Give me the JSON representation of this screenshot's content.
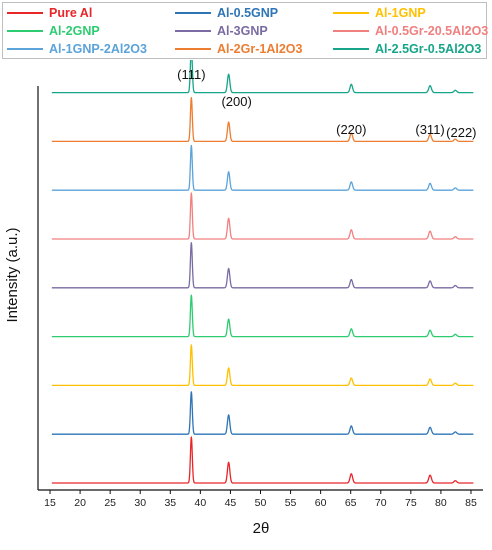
{
  "chart_data": {
    "type": "line",
    "xlabel": "2θ",
    "ylabel": "Intensity (a.u.)",
    "xlim": [
      13,
      87
    ],
    "xticks": [
      15,
      20,
      25,
      30,
      35,
      40,
      45,
      50,
      55,
      60,
      65,
      70,
      75,
      80,
      85
    ],
    "grid": false,
    "legend_position": "top",
    "peak_annotations": [
      {
        "label": "(111)",
        "x": 38.5
      },
      {
        "label": "(200)",
        "x": 44.7
      },
      {
        "label": "(220)",
        "x": 65.1
      },
      {
        "label": "(311)",
        "x": 78.2
      },
      {
        "label": "(222)",
        "x": 82.4
      }
    ],
    "series": [
      {
        "name": "Pure Al",
        "color": "#e8262a",
        "peaks": [
          [
            38.5,
            1.0
          ],
          [
            44.7,
            0.45
          ],
          [
            65.1,
            0.2
          ],
          [
            78.2,
            0.17
          ],
          [
            82.4,
            0.05
          ]
        ]
      },
      {
        "name": "Al-0.5GNP",
        "color": "#2e75b6",
        "peaks": [
          [
            38.5,
            0.92
          ],
          [
            44.7,
            0.42
          ],
          [
            65.1,
            0.18
          ],
          [
            78.2,
            0.15
          ],
          [
            82.4,
            0.05
          ]
        ]
      },
      {
        "name": "Al-1GNP",
        "color": "#ffc000",
        "peaks": [
          [
            38.5,
            0.88
          ],
          [
            44.7,
            0.38
          ],
          [
            65.1,
            0.16
          ],
          [
            78.2,
            0.14
          ],
          [
            82.4,
            0.05
          ]
        ]
      },
      {
        "name": "Al-2GNP",
        "color": "#2ecc71",
        "peaks": [
          [
            38.5,
            0.9
          ],
          [
            44.7,
            0.38
          ],
          [
            65.1,
            0.17
          ],
          [
            78.2,
            0.14
          ],
          [
            82.4,
            0.05
          ]
        ]
      },
      {
        "name": "Al-3GNP",
        "color": "#7a6ba3",
        "peaks": [
          [
            38.5,
            0.98
          ],
          [
            44.7,
            0.42
          ],
          [
            65.1,
            0.18
          ],
          [
            78.2,
            0.15
          ],
          [
            82.4,
            0.05
          ]
        ]
      },
      {
        "name": "Al-0.5Gr-20.5Al2O3",
        "color": "#f08080",
        "peaks": [
          [
            38.5,
            1.0
          ],
          [
            44.7,
            0.45
          ],
          [
            65.1,
            0.2
          ],
          [
            78.2,
            0.17
          ],
          [
            82.4,
            0.05
          ]
        ]
      },
      {
        "name": "Al-1GNP-2Al2O3",
        "color": "#5ba3d9",
        "peaks": [
          [
            38.5,
            0.97
          ],
          [
            44.7,
            0.4
          ],
          [
            65.1,
            0.18
          ],
          [
            78.2,
            0.15
          ],
          [
            82.4,
            0.05
          ]
        ]
      },
      {
        "name": "Al-2Gr-1Al2O3",
        "color": "#ed7d31",
        "peaks": [
          [
            38.5,
            0.95
          ],
          [
            44.7,
            0.42
          ],
          [
            65.1,
            0.18
          ],
          [
            78.2,
            0.15
          ],
          [
            82.4,
            0.05
          ]
        ]
      },
      {
        "name": "Al-2.5Gr-0.5Al2O3",
        "color": "#17a589",
        "peaks": [
          [
            38.5,
            1.0
          ],
          [
            44.7,
            0.4
          ],
          [
            65.1,
            0.18
          ],
          [
            78.2,
            0.15
          ],
          [
            82.4,
            0.05
          ]
        ]
      }
    ]
  }
}
